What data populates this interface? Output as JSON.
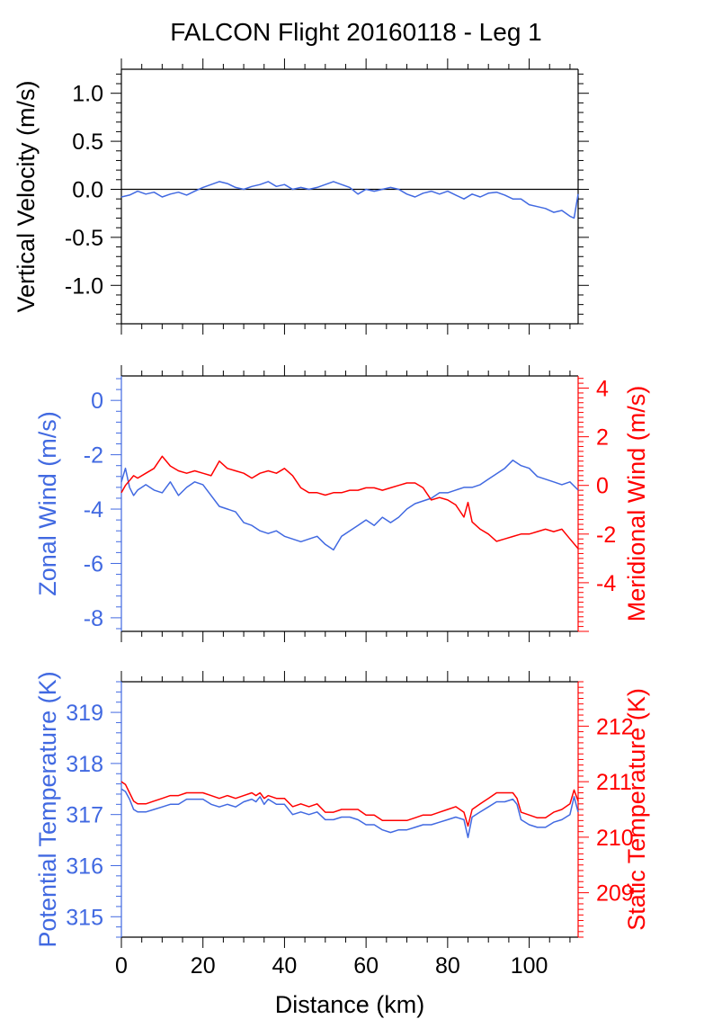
{
  "title": "FALCON Flight 20160118 - Leg 1",
  "colors": {
    "blue": "#4169e1",
    "red": "#ff0000",
    "black": "#000000"
  },
  "chart_data": [
    {
      "type": "line",
      "panel": "top",
      "ylabel": "Vertical Velocity (m/s)",
      "ylim": [
        -1.4,
        1.25
      ],
      "yticks": [
        "1.0",
        "0.5",
        "0.0",
        "-0.5",
        "-1.0"
      ],
      "ytick_values": [
        1.0,
        0.5,
        0.0,
        -0.5,
        -1.0
      ],
      "xlim": [
        0,
        112
      ],
      "zero_line": true,
      "series": [
        {
          "color": "#4169e1",
          "x": [
            0,
            2,
            4,
            6,
            8,
            10,
            12,
            14,
            16,
            18,
            20,
            22,
            24,
            26,
            28,
            30,
            32,
            34,
            36,
            38,
            40,
            42,
            44,
            46,
            48,
            50,
            52,
            54,
            56,
            58,
            60,
            62,
            64,
            66,
            68,
            70,
            72,
            74,
            76,
            78,
            80,
            82,
            84,
            86,
            88,
            90,
            92,
            94,
            96,
            98,
            100,
            102,
            104,
            106,
            108,
            110,
            111,
            112
          ],
          "y": [
            -0.08,
            -0.06,
            -0.02,
            -0.05,
            -0.03,
            -0.08,
            -0.05,
            -0.03,
            -0.06,
            -0.02,
            0.02,
            0.05,
            0.08,
            0.06,
            0.02,
            0.0,
            0.03,
            0.05,
            0.08,
            0.03,
            0.05,
            0.0,
            0.02,
            0.0,
            0.02,
            0.05,
            0.08,
            0.05,
            0.02,
            -0.05,
            0.0,
            -0.02,
            0.0,
            0.02,
            0.0,
            -0.05,
            -0.08,
            -0.04,
            -0.02,
            -0.05,
            -0.02,
            -0.06,
            -0.1,
            -0.05,
            -0.08,
            -0.04,
            -0.03,
            -0.06,
            -0.1,
            -0.1,
            -0.16,
            -0.18,
            -0.2,
            -0.24,
            -0.22,
            -0.28,
            -0.3,
            -0.05
          ]
        }
      ]
    },
    {
      "type": "line",
      "panel": "middle",
      "ylabel": "Zonal Wind (m/s)",
      "ylabel_right": "Meridional Wind (m/s)",
      "ylim": [
        -8.5,
        0.9
      ],
      "yticks": [
        "0",
        "-2",
        "-4",
        "-6",
        "-8"
      ],
      "ytick_values": [
        0,
        -2,
        -4,
        -6,
        -8
      ],
      "ylim_right": [
        -6,
        4.5
      ],
      "yticks_right": [
        "4",
        "2",
        "0",
        "-2",
        "-4"
      ],
      "ytick_values_right": [
        4,
        2,
        0,
        -2,
        -4
      ],
      "xlim": [
        0,
        112
      ],
      "series": [
        {
          "axis": "left",
          "color": "#4169e1",
          "x": [
            0,
            1,
            2,
            3,
            4,
            6,
            8,
            10,
            12,
            14,
            16,
            18,
            20,
            22,
            24,
            26,
            28,
            30,
            32,
            34,
            36,
            38,
            40,
            42,
            44,
            46,
            48,
            50,
            52,
            54,
            56,
            58,
            60,
            62,
            64,
            66,
            68,
            70,
            72,
            74,
            76,
            78,
            80,
            82,
            84,
            86,
            88,
            90,
            92,
            94,
            96,
            98,
            100,
            102,
            104,
            106,
            108,
            110,
            112
          ],
          "y": [
            -3.0,
            -2.5,
            -3.2,
            -3.5,
            -3.3,
            -3.1,
            -3.3,
            -3.4,
            -3.0,
            -3.5,
            -3.2,
            -3.0,
            -3.1,
            -3.5,
            -3.9,
            -4.0,
            -4.1,
            -4.5,
            -4.6,
            -4.8,
            -4.9,
            -4.8,
            -5.0,
            -5.1,
            -5.2,
            -5.1,
            -5.0,
            -5.3,
            -5.5,
            -5.0,
            -4.8,
            -4.6,
            -4.4,
            -4.6,
            -4.3,
            -4.5,
            -4.3,
            -4.0,
            -3.8,
            -3.7,
            -3.6,
            -3.4,
            -3.4,
            -3.3,
            -3.2,
            -3.2,
            -3.1,
            -2.9,
            -2.7,
            -2.5,
            -2.2,
            -2.4,
            -2.5,
            -2.8,
            -2.9,
            -3.0,
            -3.1,
            -3.0,
            -3.3
          ]
        },
        {
          "axis": "right",
          "color": "#ff0000",
          "x": [
            0,
            1,
            2,
            3,
            4,
            6,
            8,
            10,
            12,
            14,
            16,
            18,
            20,
            22,
            24,
            26,
            28,
            30,
            32,
            34,
            36,
            38,
            40,
            42,
            44,
            46,
            48,
            50,
            52,
            54,
            56,
            58,
            60,
            62,
            64,
            66,
            68,
            70,
            72,
            74,
            76,
            78,
            80,
            82,
            84,
            85,
            86,
            88,
            90,
            92,
            94,
            96,
            98,
            100,
            102,
            104,
            106,
            108,
            110,
            112
          ],
          "y": [
            -0.3,
            0.0,
            0.2,
            0.4,
            0.3,
            0.5,
            0.7,
            1.2,
            0.8,
            0.6,
            0.5,
            0.6,
            0.5,
            0.4,
            1.0,
            0.7,
            0.6,
            0.5,
            0.3,
            0.5,
            0.6,
            0.5,
            0.7,
            0.4,
            -0.1,
            -0.3,
            -0.3,
            -0.4,
            -0.3,
            -0.3,
            -0.2,
            -0.2,
            -0.1,
            -0.1,
            -0.2,
            -0.1,
            0.0,
            0.1,
            0.1,
            -0.1,
            -0.6,
            -0.5,
            -0.6,
            -0.8,
            -1.3,
            -0.7,
            -1.5,
            -1.8,
            -2.0,
            -2.3,
            -2.2,
            -2.1,
            -2.0,
            -2.0,
            -1.9,
            -1.8,
            -1.9,
            -1.8,
            -2.2,
            -2.6
          ]
        }
      ]
    },
    {
      "type": "line",
      "panel": "bottom",
      "ylabel": "Potential Temperature (K)",
      "ylabel_right": "Static Temperature (K)",
      "xlabel": "Distance (km)",
      "ylim": [
        314.6,
        319.6
      ],
      "yticks": [
        "319",
        "318",
        "317",
        "316",
        "315"
      ],
      "ytick_values": [
        319,
        318,
        317,
        316,
        315
      ],
      "ylim_right": [
        208.2,
        212.8
      ],
      "yticks_right": [
        "212",
        "211",
        "210",
        "209"
      ],
      "ytick_values_right": [
        212,
        211,
        210,
        209
      ],
      "xlim": [
        0,
        112
      ],
      "xticks": [
        "0",
        "20",
        "40",
        "60",
        "80",
        "100"
      ],
      "xtick_values": [
        0,
        20,
        40,
        60,
        80,
        100
      ],
      "series": [
        {
          "axis": "left",
          "color": "#4169e1",
          "x": [
            0,
            1,
            2,
            3,
            4,
            6,
            8,
            10,
            12,
            14,
            16,
            18,
            20,
            22,
            24,
            26,
            28,
            30,
            32,
            33,
            34,
            35,
            36,
            38,
            40,
            42,
            44,
            46,
            48,
            50,
            52,
            54,
            56,
            58,
            60,
            62,
            64,
            66,
            68,
            70,
            72,
            74,
            76,
            78,
            80,
            82,
            84,
            85,
            86,
            88,
            90,
            92,
            94,
            96,
            97,
            98,
            100,
            102,
            104,
            106,
            108,
            110,
            111,
            112
          ],
          "y": [
            317.5,
            317.45,
            317.3,
            317.1,
            317.05,
            317.05,
            317.1,
            317.15,
            317.2,
            317.2,
            317.3,
            317.3,
            317.3,
            317.2,
            317.15,
            317.2,
            317.15,
            317.25,
            317.3,
            317.25,
            317.35,
            317.2,
            317.3,
            317.2,
            317.2,
            317.0,
            317.05,
            317.0,
            317.05,
            316.9,
            316.9,
            316.95,
            316.95,
            316.9,
            316.8,
            316.8,
            316.7,
            316.65,
            316.7,
            316.7,
            316.75,
            316.8,
            316.8,
            316.85,
            316.9,
            316.95,
            316.9,
            316.55,
            316.95,
            317.05,
            317.15,
            317.25,
            317.25,
            317.3,
            317.2,
            316.9,
            316.8,
            316.75,
            316.75,
            316.85,
            316.9,
            317.0,
            317.35,
            317.05
          ]
        },
        {
          "axis": "right",
          "color": "#ff0000",
          "x": [
            0,
            1,
            2,
            3,
            4,
            6,
            8,
            10,
            12,
            14,
            16,
            18,
            20,
            22,
            24,
            26,
            28,
            30,
            32,
            33,
            34,
            35,
            36,
            38,
            40,
            42,
            44,
            46,
            48,
            50,
            52,
            54,
            56,
            58,
            60,
            62,
            64,
            66,
            68,
            70,
            72,
            74,
            76,
            78,
            80,
            82,
            84,
            85,
            86,
            88,
            90,
            92,
            94,
            96,
            97,
            98,
            100,
            102,
            104,
            106,
            108,
            110,
            111,
            112
          ],
          "y": [
            211.0,
            210.95,
            210.8,
            210.65,
            210.6,
            210.6,
            210.65,
            210.7,
            210.75,
            210.75,
            210.8,
            210.8,
            210.8,
            210.75,
            210.7,
            210.75,
            210.7,
            210.75,
            210.8,
            210.75,
            210.8,
            210.7,
            210.75,
            210.7,
            210.7,
            210.55,
            210.6,
            210.55,
            210.6,
            210.45,
            210.45,
            210.5,
            210.5,
            210.5,
            210.4,
            210.4,
            210.3,
            210.3,
            210.3,
            210.3,
            210.35,
            210.4,
            210.4,
            210.45,
            210.5,
            210.55,
            210.45,
            210.2,
            210.5,
            210.6,
            210.7,
            210.8,
            210.8,
            210.8,
            210.7,
            210.45,
            210.4,
            210.35,
            210.35,
            210.45,
            210.5,
            210.6,
            210.85,
            210.65
          ]
        }
      ]
    }
  ]
}
